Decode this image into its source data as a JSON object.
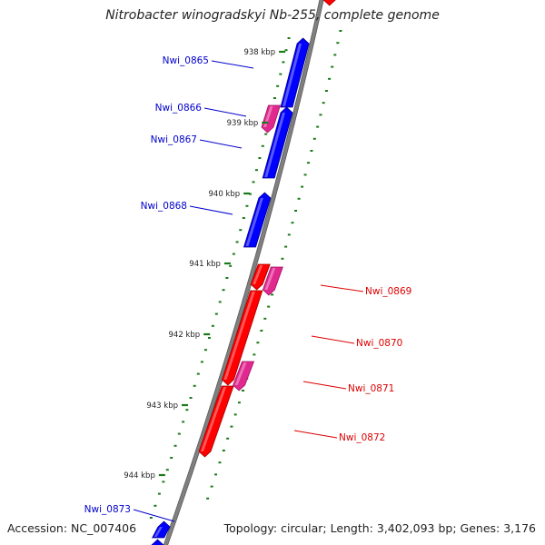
{
  "title": "Nitrobacter winogradskyi Nb-255, complete genome",
  "footer": {
    "accession": "Accession: NC_007406",
    "summary": "Topology: circular; Length: 3,402,093 bp; Genes: 3,176"
  },
  "colors": {
    "forward_cds": "#0000ff",
    "reverse_cds": "#ff0000",
    "forward_rna": "#e0288f",
    "reverse_rna": "#e0288f",
    "backbone": "#808080",
    "tick": "#1a7a1a",
    "forward_label": "#0000cc",
    "reverse_label": "#dd0000"
  },
  "ticks": [
    {
      "label": "938 kbp"
    },
    {
      "label": "939 kbp"
    },
    {
      "label": "940 kbp"
    },
    {
      "label": "941 kbp"
    },
    {
      "label": "942 kbp"
    },
    {
      "label": "943 kbp"
    },
    {
      "label": "944 kbp"
    }
  ],
  "forward_genes": [
    {
      "label": "Nwi_0865"
    },
    {
      "label": "Nwi_0866"
    },
    {
      "label": "Nwi_0867"
    },
    {
      "label": "Nwi_0868"
    },
    {
      "label": "Nwi_0873"
    }
  ],
  "reverse_genes": [
    {
      "label": "Nwi_0869"
    },
    {
      "label": "Nwi_0870"
    },
    {
      "label": "Nwi_0871"
    },
    {
      "label": "Nwi_0872"
    }
  ]
}
